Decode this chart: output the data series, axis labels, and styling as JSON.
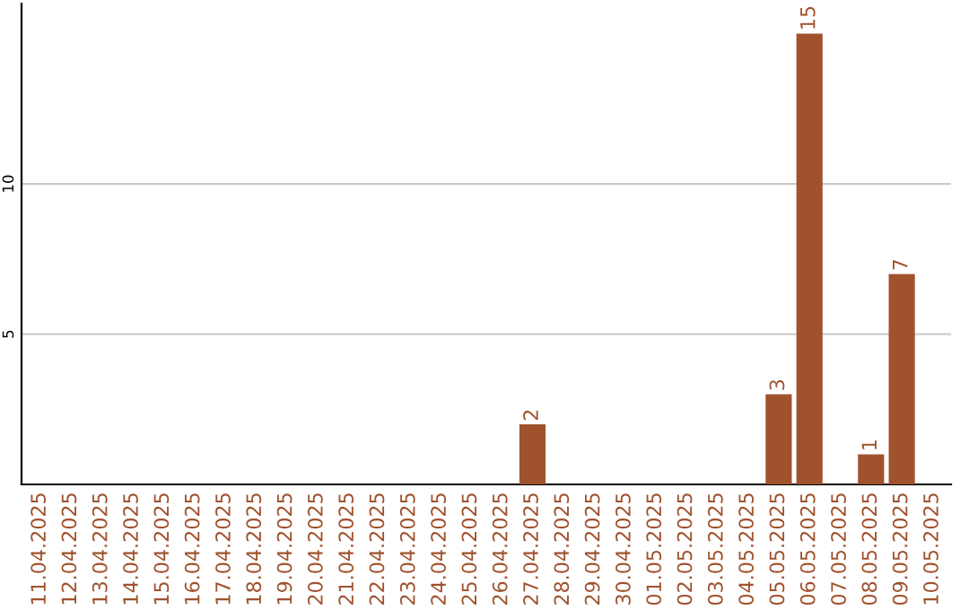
{
  "chart_data": {
    "type": "bar",
    "categories": [
      "11.04.2025",
      "12.04.2025",
      "13.04.2025",
      "14.04.2025",
      "15.04.2025",
      "16.04.2025",
      "17.04.2025",
      "18.04.2025",
      "19.04.2025",
      "20.04.2025",
      "21.04.2025",
      "22.04.2025",
      "23.04.2025",
      "24.04.2025",
      "25.04.2025",
      "26.04.2025",
      "27.04.2025",
      "28.04.2025",
      "29.04.2025",
      "30.04.2025",
      "01.05.2025",
      "02.05.2025",
      "03.05.2025",
      "04.05.2025",
      "05.05.2025",
      "06.05.2025",
      "07.05.2025",
      "08.05.2025",
      "09.05.2025",
      "10.05.2025"
    ],
    "values": [
      0,
      0,
      0,
      0,
      0,
      0,
      0,
      0,
      0,
      0,
      0,
      0,
      0,
      0,
      0,
      0,
      2,
      0,
      0,
      0,
      0,
      0,
      0,
      0,
      3,
      15,
      0,
      1,
      7,
      0
    ],
    "value_labels": [
      null,
      null,
      null,
      null,
      null,
      null,
      null,
      null,
      null,
      null,
      null,
      null,
      null,
      null,
      null,
      null,
      "2",
      null,
      null,
      null,
      null,
      null,
      null,
      null,
      "3",
      "15",
      null,
      "1",
      "7",
      null
    ],
    "color": "#a0522d",
    "ylim": [
      0,
      16
    ],
    "yticks": [
      5,
      10
    ],
    "grid": "y",
    "legend": false
  }
}
